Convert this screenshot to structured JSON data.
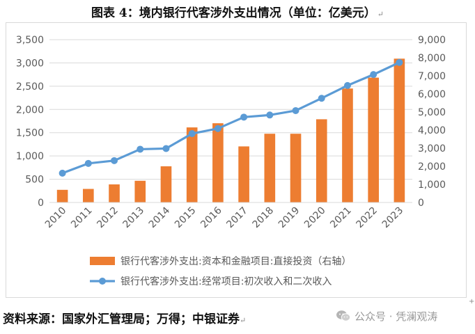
{
  "title": "图表 4：境内银行代客涉外支出情况（单位：亿美元）",
  "title_mark": "↵",
  "footer": {
    "source": "资料来源：国家外汇管理局；万得；中银证券",
    "mark": "↵",
    "watermark": "公众号 · 凭澜观涛"
  },
  "colors": {
    "bar": "#ED7D31",
    "line": "#5B9BD5",
    "grid": "#d9d9d9",
    "tick": "#595959"
  },
  "chart_data": {
    "type": "bar",
    "categories": [
      "2010",
      "2011",
      "2012",
      "2013",
      "2014",
      "2015",
      "2016",
      "2017",
      "2018",
      "2019",
      "2020",
      "2021",
      "2022",
      "2023"
    ],
    "series": [
      {
        "name": "银行代客涉外支出:资本和金融项目:直接投资（右轴）",
        "type": "bar",
        "axis": "right",
        "values": [
          700,
          750,
          1000,
          1200,
          2000,
          4150,
          4380,
          3100,
          3800,
          3800,
          4600,
          6300,
          6900,
          7950
        ]
      },
      {
        "name": "银行代客涉外支出:经常项目:初次收入和二次收入",
        "type": "line",
        "axis": "left",
        "values": [
          630,
          840,
          900,
          1145,
          1160,
          1480,
          1590,
          1835,
          1880,
          1975,
          2240,
          2515,
          2750,
          3010
        ]
      }
    ],
    "y_left": {
      "min": 0,
      "max": 3500,
      "ticks": [
        "0",
        "500",
        "1,000",
        "1,500",
        "2,000",
        "2,500",
        "3,000",
        "3,500"
      ]
    },
    "y_right": {
      "min": 0,
      "max": 9000,
      "ticks": [
        "0",
        "1,000",
        "2,000",
        "3,000",
        "4,000",
        "5,000",
        "6,000",
        "7,000",
        "8,000",
        "9,000"
      ]
    },
    "grid": true,
    "legend_position": "bottom"
  }
}
